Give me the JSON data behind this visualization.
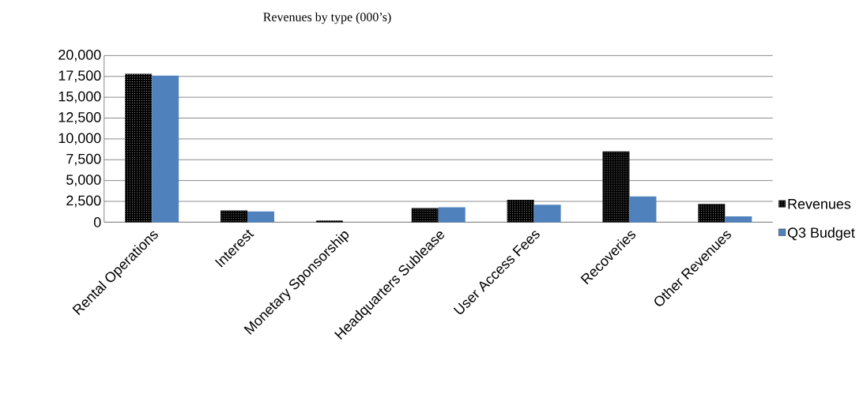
{
  "chart_data": {
    "type": "bar",
    "title": "Revenues by type (000’s)",
    "categories": [
      "Rental Operations",
      "Interest",
      "Monetary Sponsorship",
      "Headquarters Sublease",
      "User Access Fees",
      "Recoveries",
      "Other Revenues"
    ],
    "series": [
      {
        "name": "Revenues",
        "color": "#000000",
        "values": [
          17800,
          1400,
          200,
          1700,
          2700,
          8500,
          2200
        ]
      },
      {
        "name": "Q3 Budget",
        "color": "#4f81bd",
        "values": [
          17600,
          1300,
          null,
          1800,
          2100,
          3100,
          700
        ]
      }
    ],
    "ylim": [
      0,
      20000
    ],
    "yticks": [
      {
        "value": 0,
        "label": "0"
      },
      {
        "value": 2500,
        "label": "2,500"
      },
      {
        "value": 5000,
        "label": "5,000"
      },
      {
        "value": 7500,
        "label": "7,500"
      },
      {
        "value": 10000,
        "label": "10,000"
      },
      {
        "value": 12500,
        "label": "12,500"
      },
      {
        "value": 15000,
        "label": "15,000"
      },
      {
        "value": 17500,
        "label": "17,500"
      },
      {
        "value": 20000,
        "label": "20,000"
      }
    ],
    "grid": "y",
    "legend": "right"
  }
}
